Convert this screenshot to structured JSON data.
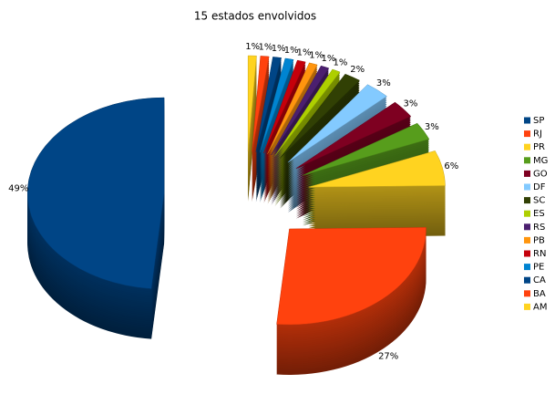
{
  "chart_data": {
    "type": "pie",
    "title": "15 estados envolvidos",
    "categories": [
      "SP",
      "RJ",
      "PR",
      "MG",
      "GO",
      "DF",
      "SC",
      "ES",
      "RS",
      "PB",
      "RN",
      "PE",
      "CA",
      "BA",
      "AM"
    ],
    "values": [
      49,
      27,
      6,
      3,
      3,
      3,
      2,
      1,
      1,
      1,
      1,
      1,
      1,
      1,
      1
    ],
    "value_labels": [
      "49%",
      "27%",
      "6%",
      "3%",
      "3%",
      "3%",
      "2%",
      "1%",
      "1%",
      "1%",
      "1%",
      "1%",
      "1%",
      "1%",
      "1%"
    ],
    "colors": [
      "#004586",
      "#ff420e",
      "#ffd320",
      "#579d1c",
      "#7e0021",
      "#83caff",
      "#314004",
      "#aecf00",
      "#4b1f6f",
      "#ff950e",
      "#c5000b",
      "#0084d1",
      "#004586",
      "#ff420e",
      "#ffd320"
    ],
    "legend": "right"
  }
}
